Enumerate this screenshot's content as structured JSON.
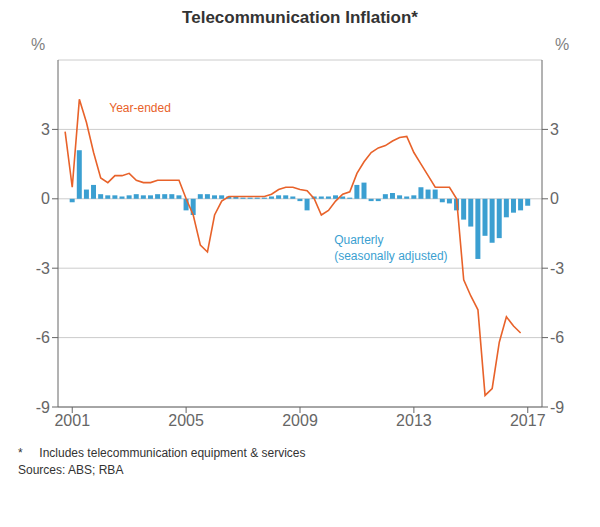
{
  "chart_data": {
    "type": "bar",
    "title": "Telecommunication Inflation*",
    "ylabel": "%",
    "y2label": "%",
    "xlim": [
      2000.5,
      2017.5
    ],
    "xticks": [
      2001,
      2005,
      2009,
      2013,
      2017
    ],
    "ylim": [
      -9,
      6
    ],
    "yticks": [
      -9,
      -6,
      -3,
      0,
      3
    ],
    "y2lim": [
      -9,
      6
    ],
    "y2ticks": [
      -9,
      -6,
      -3,
      0,
      3
    ],
    "grid": true,
    "series": [
      {
        "name": "Quarterly",
        "type": "bar",
        "color": "#3B9FD1",
        "x": [
          2001.0,
          2001.25,
          2001.5,
          2001.75,
          2002.0,
          2002.25,
          2002.5,
          2002.75,
          2003.0,
          2003.25,
          2003.5,
          2003.75,
          2004.0,
          2004.25,
          2004.5,
          2004.75,
          2005.0,
          2005.25,
          2005.5,
          2005.75,
          2006.0,
          2006.25,
          2006.5,
          2006.75,
          2007.0,
          2007.25,
          2007.5,
          2007.75,
          2008.0,
          2008.25,
          2008.5,
          2008.75,
          2009.0,
          2009.25,
          2009.5,
          2009.75,
          2010.0,
          2010.25,
          2010.5,
          2010.75,
          2011.0,
          2011.25,
          2011.5,
          2011.75,
          2012.0,
          2012.25,
          2012.5,
          2012.75,
          2013.0,
          2013.25,
          2013.5,
          2013.75,
          2014.0,
          2014.25,
          2014.5,
          2014.75,
          2015.0,
          2015.25,
          2015.5,
          2015.75,
          2016.0,
          2016.25,
          2016.5,
          2016.75,
          2017.0
        ],
        "values": [
          -0.15,
          2.1,
          0.4,
          0.6,
          0.2,
          0.15,
          0.15,
          0.1,
          0.15,
          0.2,
          0.15,
          0.15,
          0.2,
          0.2,
          0.2,
          0.15,
          -0.5,
          -0.7,
          0.2,
          0.2,
          0.15,
          0.15,
          0.1,
          0.1,
          0.05,
          0.05,
          0.05,
          0.05,
          0.1,
          0.15,
          0.15,
          0.1,
          -0.1,
          -0.5,
          0.1,
          0.1,
          0.1,
          0.15,
          0.1,
          0.05,
          0.6,
          0.7,
          -0.1,
          -0.1,
          0.2,
          0.25,
          0.15,
          0.1,
          0.15,
          0.5,
          0.4,
          0.4,
          -0.15,
          -0.2,
          -0.5,
          -0.9,
          -1.2,
          -2.6,
          -1.6,
          -1.9,
          -1.7,
          -0.8,
          -0.6,
          -0.5,
          -0.3
        ]
      },
      {
        "name": "Year-ended",
        "type": "line",
        "color": "#E8622A",
        "x": [
          2000.75,
          2001.0,
          2001.25,
          2001.5,
          2001.75,
          2002.0,
          2002.25,
          2002.5,
          2002.75,
          2003.0,
          2003.25,
          2003.5,
          2003.75,
          2004.0,
          2004.25,
          2004.5,
          2004.75,
          2005.0,
          2005.25,
          2005.5,
          2005.75,
          2006.0,
          2006.25,
          2006.5,
          2006.75,
          2007.0,
          2007.25,
          2007.5,
          2007.75,
          2008.0,
          2008.25,
          2008.5,
          2008.75,
          2009.0,
          2009.25,
          2009.5,
          2009.75,
          2010.0,
          2010.25,
          2010.5,
          2010.75,
          2011.0,
          2011.25,
          2011.5,
          2011.75,
          2012.0,
          2012.25,
          2012.5,
          2012.75,
          2013.0,
          2013.25,
          2013.5,
          2013.75,
          2014.0,
          2014.25,
          2014.5,
          2014.75,
          2015.0,
          2015.25,
          2015.5,
          2015.75,
          2016.0,
          2016.25,
          2016.5,
          2016.75
        ],
        "values": [
          2.9,
          0.5,
          4.3,
          3.3,
          2.0,
          0.9,
          0.7,
          1.0,
          1.0,
          1.1,
          0.8,
          0.7,
          0.7,
          0.8,
          0.8,
          0.8,
          0.8,
          0.0,
          -0.7,
          -2.0,
          -2.3,
          -0.7,
          -0.1,
          0.1,
          0.1,
          0.1,
          0.1,
          0.1,
          0.1,
          0.2,
          0.4,
          0.5,
          0.5,
          0.4,
          0.35,
          0.0,
          -0.7,
          -0.5,
          -0.1,
          0.2,
          0.3,
          1.1,
          1.6,
          2.0,
          2.2,
          2.3,
          2.5,
          2.65,
          2.7,
          2.0,
          1.5,
          1.0,
          0.5,
          0.5,
          0.5,
          0.0,
          -3.5,
          -4.2,
          -4.8,
          -8.5,
          -8.2,
          -6.2,
          -5.1,
          -5.5,
          -5.8
        ]
      }
    ],
    "annotations": [
      {
        "text": "Year-ended",
        "x": 2002.3,
        "y": 3.9,
        "color": "#E8622A"
      },
      {
        "text": "Quarterly",
        "x": 2010.2,
        "y": -1.8,
        "color": "#3B9FD1"
      },
      {
        "text": "(seasonally adjusted)",
        "x": 2010.2,
        "y": -2.5,
        "color": "#3B9FD1"
      }
    ],
    "footnotes": [
      "*     Includes telecommunication equipment & services",
      "Sources: ABS; RBA"
    ]
  }
}
